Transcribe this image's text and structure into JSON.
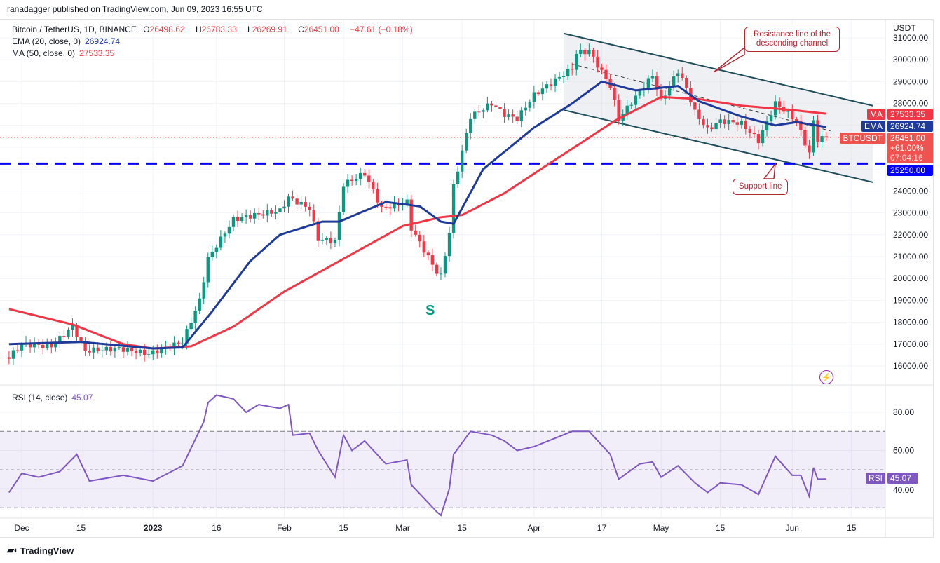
{
  "publisher": "ranadagger published on TradingView.com, Jun 09, 2023 16:55 UTC",
  "legend": {
    "symbol": "Bitcoin / TetherUS, 1D, BINANCE",
    "open_label": "O",
    "open": "26498.62",
    "high_label": "H",
    "high": "26783.33",
    "low_label": "L",
    "low": "26269.91",
    "close_label": "C",
    "close": "26451.00",
    "change": "−47.61 (−0.18%)",
    "ema_label": "EMA (20, close, 0)",
    "ema_value": "26924.74",
    "ma_label": "MA (50, close, 0)",
    "ma_value": "27533.35",
    "rsi_label": "RSI (14, close)",
    "rsi_value": "45.07"
  },
  "price_axis": {
    "currency": "USDT",
    "ma_tag": "MA",
    "ma_value": "27533.35",
    "ema_tag": "EMA",
    "ema_value": "26924.74",
    "symbol_tag": "BTCUSDT",
    "last_price": "26451.00",
    "change_pct": "+61.00%",
    "countdown": "07:04:16",
    "support_value": "25250.00",
    "rsi_tag": "RSI",
    "rsi_value": "45.07"
  },
  "annotations": {
    "resistance": "Resistance line of the descending channel",
    "support": "Support line",
    "swing_label": "S"
  },
  "footer": {
    "brand": "TradingView"
  },
  "colors": {
    "up": "#089981",
    "down": "#f23645",
    "ema": "#1e3a9a",
    "ma": "#f23645",
    "rsi": "#7e57c2",
    "support": "#0000ff",
    "callout": "#b22833"
  },
  "chart_data": [
    {
      "type": "candlestick",
      "title": "Bitcoin / TetherUS, 1D, BINANCE",
      "ylabel": "USDT",
      "ylim": [
        15500,
        31500
      ],
      "yticks": [
        16000,
        17000,
        18000,
        19000,
        20000,
        21000,
        22000,
        23000,
        24000,
        25000,
        26000,
        27000,
        28000,
        29000,
        30000,
        31000
      ],
      "xticks": [
        {
          "date": "2022-12-01",
          "label": "Dec"
        },
        {
          "date": "2022-12-15",
          "label": "15"
        },
        {
          "date": "2023-01-01",
          "label": "2023"
        },
        {
          "date": "2023-01-16",
          "label": "16"
        },
        {
          "date": "2023-02-01",
          "label": "Feb"
        },
        {
          "date": "2023-02-15",
          "label": "15"
        },
        {
          "date": "2023-03-01",
          "label": "Mar"
        },
        {
          "date": "2023-03-15",
          "label": "15"
        },
        {
          "date": "2023-04-01",
          "label": "Apr"
        },
        {
          "date": "2023-04-17",
          "label": "17"
        },
        {
          "date": "2023-05-01",
          "label": "May"
        },
        {
          "date": "2023-05-15",
          "label": "15"
        },
        {
          "date": "2023-06-01",
          "label": "Jun"
        },
        {
          "date": "2023-06-15",
          "label": "15"
        }
      ],
      "close_keypoints": [
        [
          "2022-11-28",
          16400
        ],
        [
          "2022-12-01",
          17000
        ],
        [
          "2022-12-08",
          16900
        ],
        [
          "2022-12-13",
          17800
        ],
        [
          "2022-12-16",
          16700
        ],
        [
          "2022-12-24",
          16800
        ],
        [
          "2022-12-31",
          16550
        ],
        [
          "2023-01-08",
          17100
        ],
        [
          "2023-01-12",
          19000
        ],
        [
          "2023-01-14",
          20900
        ],
        [
          "2023-01-20",
          22700
        ],
        [
          "2023-01-25",
          22900
        ],
        [
          "2023-01-31",
          23100
        ],
        [
          "2023-02-02",
          23700
        ],
        [
          "2023-02-07",
          23200
        ],
        [
          "2023-02-09",
          21800
        ],
        [
          "2023-02-13",
          21700
        ],
        [
          "2023-02-15",
          24300
        ],
        [
          "2023-02-20",
          24800
        ],
        [
          "2023-02-24",
          23200
        ],
        [
          "2023-03-02",
          23500
        ],
        [
          "2023-03-03",
          22300
        ],
        [
          "2023-03-09",
          20300
        ],
        [
          "2023-03-10",
          20100
        ],
        [
          "2023-03-12",
          22100
        ],
        [
          "2023-03-13",
          24200
        ],
        [
          "2023-03-17",
          27400
        ],
        [
          "2023-03-22",
          28000
        ],
        [
          "2023-03-25",
          27500
        ],
        [
          "2023-03-28",
          27300
        ],
        [
          "2023-04-01",
          28400
        ],
        [
          "2023-04-10",
          29600
        ],
        [
          "2023-04-11",
          30300
        ],
        [
          "2023-04-14",
          30400
        ],
        [
          "2023-04-19",
          28800
        ],
        [
          "2023-04-21",
          27300
        ],
        [
          "2023-04-25",
          28300
        ],
        [
          "2023-04-29",
          29300
        ],
        [
          "2023-05-01",
          28100
        ],
        [
          "2023-05-05",
          29500
        ],
        [
          "2023-05-07",
          28700
        ],
        [
          "2023-05-09",
          27600
        ],
        [
          "2023-05-12",
          26800
        ],
        [
          "2023-05-15",
          27200
        ],
        [
          "2023-05-20",
          27100
        ],
        [
          "2023-05-24",
          26300
        ],
        [
          "2023-05-28",
          28000
        ],
        [
          "2023-05-30",
          27700
        ],
        [
          "2023-06-02",
          27200
        ],
        [
          "2023-06-05",
          25700
        ],
        [
          "2023-06-06",
          27200
        ],
        [
          "2023-06-07",
          26350
        ],
        [
          "2023-06-09",
          26451
        ]
      ],
      "ema20": [
        [
          "2022-11-28",
          17000
        ],
        [
          "2022-12-15",
          17100
        ],
        [
          "2023-01-01",
          16800
        ],
        [
          "2023-01-08",
          16850
        ],
        [
          "2023-01-15",
          18500
        ],
        [
          "2023-01-24",
          20800
        ],
        [
          "2023-01-31",
          22000
        ],
        [
          "2023-02-10",
          22600
        ],
        [
          "2023-02-14",
          22600
        ],
        [
          "2023-02-25",
          23500
        ],
        [
          "2023-03-05",
          23300
        ],
        [
          "2023-03-10",
          22600
        ],
        [
          "2023-03-13",
          22500
        ],
        [
          "2023-03-20",
          25000
        ],
        [
          "2023-04-01",
          26900
        ],
        [
          "2023-04-10",
          28000
        ],
        [
          "2023-04-17",
          29000
        ],
        [
          "2023-04-25",
          28600
        ],
        [
          "2023-05-05",
          28800
        ],
        [
          "2023-05-10",
          28100
        ],
        [
          "2023-05-20",
          27400
        ],
        [
          "2023-05-28",
          27000
        ],
        [
          "2023-06-02",
          27150
        ],
        [
          "2023-06-09",
          26925
        ]
      ],
      "ma50": [
        [
          "2022-11-28",
          18600
        ],
        [
          "2022-12-13",
          17900
        ],
        [
          "2022-12-25",
          17000
        ],
        [
          "2023-01-01",
          16800
        ],
        [
          "2023-01-10",
          16900
        ],
        [
          "2023-01-20",
          17800
        ],
        [
          "2023-02-01",
          19400
        ],
        [
          "2023-02-15",
          20900
        ],
        [
          "2023-03-01",
          22400
        ],
        [
          "2023-03-10",
          22800
        ],
        [
          "2023-03-15",
          22900
        ],
        [
          "2023-03-25",
          23900
        ],
        [
          "2023-04-05",
          25300
        ],
        [
          "2023-04-20",
          27200
        ],
        [
          "2023-05-01",
          28300
        ],
        [
          "2023-05-10",
          28200
        ],
        [
          "2023-05-20",
          27900
        ],
        [
          "2023-06-01",
          27700
        ],
        [
          "2023-06-09",
          27533
        ]
      ],
      "support_level": 25250,
      "channel": {
        "upper": [
          [
            "2023-04-08",
            31200
          ],
          [
            "2023-06-20",
            27900
          ]
        ],
        "lower": [
          [
            "2023-04-08",
            27700
          ],
          [
            "2023-06-20",
            24400
          ]
        ],
        "mid": [
          [
            "2023-04-10",
            29800
          ],
          [
            "2023-06-10",
            26750
          ]
        ]
      }
    },
    {
      "type": "line",
      "title": "RSI (14, close)",
      "ylim": [
        25,
        95
      ],
      "yticks": [
        40,
        60,
        80
      ],
      "bands": [
        30,
        50,
        70
      ],
      "values": [
        [
          "2022-11-28",
          38
        ],
        [
          "2022-12-01",
          48
        ],
        [
          "2022-12-05",
          46
        ],
        [
          "2022-12-10",
          49
        ],
        [
          "2022-12-14",
          58
        ],
        [
          "2022-12-17",
          44
        ],
        [
          "2022-12-25",
          47
        ],
        [
          "2023-01-01",
          44
        ],
        [
          "2023-01-08",
          52
        ],
        [
          "2023-01-13",
          75
        ],
        [
          "2023-01-14",
          85
        ],
        [
          "2023-01-16",
          89
        ],
        [
          "2023-01-20",
          87
        ],
        [
          "2023-01-23",
          80
        ],
        [
          "2023-01-26",
          84
        ],
        [
          "2023-01-31",
          82
        ],
        [
          "2023-02-02",
          84
        ],
        [
          "2023-02-03",
          68
        ],
        [
          "2023-02-07",
          69
        ],
        [
          "2023-02-09",
          60
        ],
        [
          "2023-02-13",
          46
        ],
        [
          "2023-02-15",
          68
        ],
        [
          "2023-02-17",
          60
        ],
        [
          "2023-02-20",
          65
        ],
        [
          "2023-02-25",
          53
        ],
        [
          "2023-03-02",
          55
        ],
        [
          "2023-03-03",
          42
        ],
        [
          "2023-03-09",
          28
        ],
        [
          "2023-03-10",
          26
        ],
        [
          "2023-03-12",
          40
        ],
        [
          "2023-03-13",
          58
        ],
        [
          "2023-03-17",
          70
        ],
        [
          "2023-03-22",
          68
        ],
        [
          "2023-03-25",
          65
        ],
        [
          "2023-03-28",
          60
        ],
        [
          "2023-04-01",
          62
        ],
        [
          "2023-04-10",
          70
        ],
        [
          "2023-04-14",
          70
        ],
        [
          "2023-04-19",
          58
        ],
        [
          "2023-04-21",
          45
        ],
        [
          "2023-04-26",
          53
        ],
        [
          "2023-04-29",
          54
        ],
        [
          "2023-05-01",
          46
        ],
        [
          "2023-05-05",
          52
        ],
        [
          "2023-05-09",
          43
        ],
        [
          "2023-05-12",
          38
        ],
        [
          "2023-05-15",
          43
        ],
        [
          "2023-05-20",
          42
        ],
        [
          "2023-05-24",
          37
        ],
        [
          "2023-05-28",
          57
        ],
        [
          "2023-05-30",
          52
        ],
        [
          "2023-06-01",
          47
        ],
        [
          "2023-06-03",
          47
        ],
        [
          "2023-06-05",
          36
        ],
        [
          "2023-06-06",
          51
        ],
        [
          "2023-06-07",
          45
        ],
        [
          "2023-06-09",
          45.07
        ]
      ]
    }
  ]
}
